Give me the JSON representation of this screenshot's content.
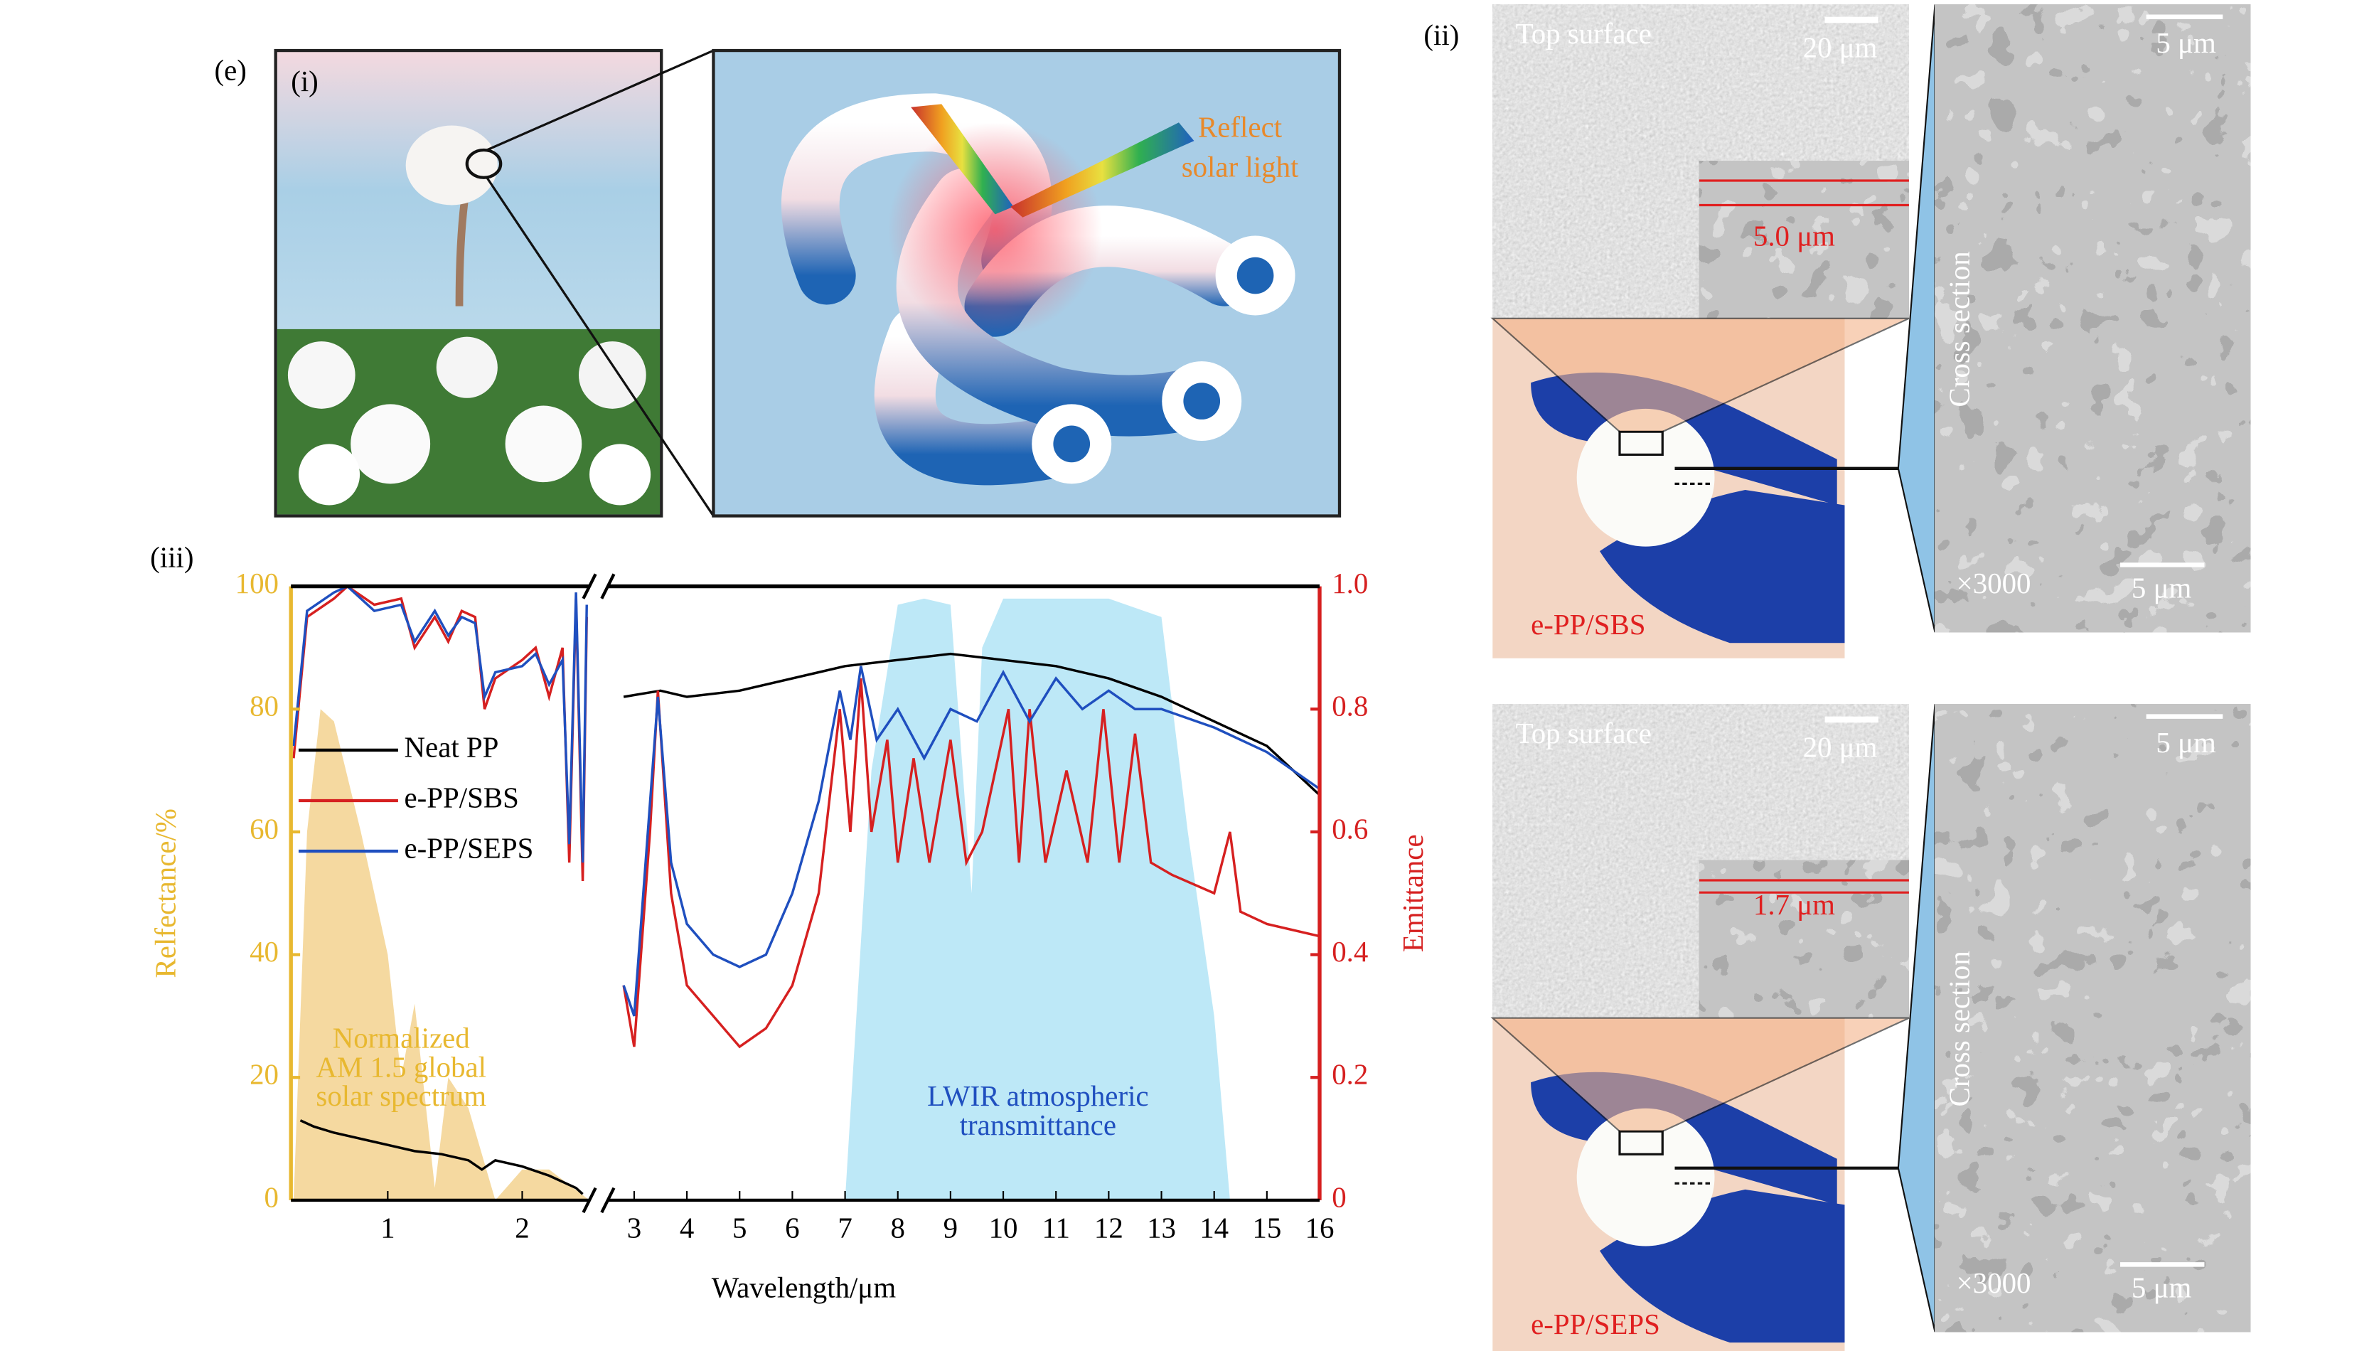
{
  "labels": {
    "e": "(e)",
    "i": "(i)",
    "ii": "(ii)",
    "iii": "(iii)"
  },
  "panel_i": {
    "annotation": [
      "Reflect",
      "solar light"
    ]
  },
  "panel_ii": [
    {
      "top_surface": "Top surface",
      "scale_top": "20 μm",
      "thickness": "5.0 μm",
      "sample": "e-PP/SBS",
      "cross_section": "Cross section",
      "magnification": "×3000",
      "scale_cs_top": "5 μm",
      "scale_cs_bottom": "5 μm"
    },
    {
      "top_surface": "Top surface",
      "scale_top": "20 μm",
      "thickness": "1.7 μm",
      "sample": "e-PP/SEPS",
      "cross_section": "Cross section",
      "magnification": "×3000",
      "scale_cs_top": "5 μm",
      "scale_cs_bottom": "5 μm"
    }
  ],
  "chart_data": [
    {
      "type": "line",
      "ylabel": "Relfectance/%",
      "xlim": [
        0.28,
        2.5
      ],
      "xticks": [
        1,
        2
      ],
      "ylim": [
        0,
        100
      ],
      "yticks": [
        0,
        20,
        40,
        60,
        80,
        100
      ],
      "axis_color": "#e8b830",
      "legend": "left",
      "area": {
        "label": [
          "Normalized",
          "AM 1.5 global",
          "solar spectrum"
        ],
        "color": "#f5d9a0",
        "x": [
          0.3,
          0.4,
          0.5,
          0.6,
          0.8,
          1.0,
          1.1,
          1.2,
          1.35,
          1.45,
          1.6,
          1.8,
          2.0,
          2.2,
          2.5
        ],
        "values": [
          0,
          60,
          80,
          78,
          60,
          40,
          20,
          32,
          2,
          20,
          15,
          0,
          5,
          5,
          0
        ]
      },
      "series": [
        {
          "name": "Neat PP",
          "color": "#000000",
          "x": [
            0.35,
            0.45,
            0.6,
            0.8,
            1.0,
            1.2,
            1.4,
            1.6,
            1.7,
            1.8,
            2.0,
            2.2,
            2.3,
            2.4,
            2.45
          ],
          "values": [
            13,
            12,
            11,
            10,
            9,
            8,
            7.5,
            6.5,
            5,
            6.5,
            5.5,
            4,
            3,
            2,
            1
          ]
        },
        {
          "name": "e-PP/SBS",
          "color": "#d62020",
          "x": [
            0.3,
            0.4,
            0.6,
            0.7,
            0.9,
            1.1,
            1.2,
            1.35,
            1.45,
            1.55,
            1.65,
            1.72,
            1.8,
            2.0,
            2.1,
            2.2,
            2.3,
            2.35,
            2.4,
            2.45,
            2.48
          ],
          "values": [
            72,
            95,
            98,
            100,
            97,
            98,
            90,
            95,
            91,
            96,
            95,
            80,
            85,
            88,
            90,
            82,
            90,
            55,
            98,
            52,
            95
          ]
        },
        {
          "name": "e-PP/SEPS",
          "color": "#1f4fbf",
          "x": [
            0.3,
            0.4,
            0.6,
            0.7,
            0.9,
            1.1,
            1.2,
            1.35,
            1.45,
            1.55,
            1.65,
            1.72,
            1.8,
            2.0,
            2.1,
            2.2,
            2.3,
            2.35,
            2.4,
            2.45,
            2.48
          ],
          "values": [
            74,
            96,
            99,
            100,
            96,
            97,
            91,
            96,
            92,
            95,
            94,
            82,
            86,
            87,
            89,
            84,
            88,
            58,
            99,
            55,
            97
          ]
        }
      ]
    },
    {
      "type": "line",
      "ylabel": "Emittance",
      "xlabel": "Wavelength/μm",
      "xlim": [
        2.5,
        16
      ],
      "xticks": [
        3,
        4,
        5,
        6,
        7,
        8,
        9,
        10,
        11,
        12,
        13,
        14,
        15,
        16
      ],
      "y2lim": [
        0,
        1
      ],
      "y2ticks": [
        0,
        0.2,
        0.4,
        0.6,
        0.8,
        {
          "value": 1,
          "label": "1.0"
        }
      ],
      "axis_color": "#d62020",
      "area": {
        "label": [
          "LWIR atmospheric",
          "transmittance"
        ],
        "color": "#bde8f7",
        "x": [
          7,
          7.5,
          8,
          8.5,
          9,
          9.4,
          9.6,
          10,
          10.5,
          12,
          13,
          13.5,
          14,
          14.3
        ],
        "values": [
          0,
          0.7,
          0.97,
          0.98,
          0.97,
          0.5,
          0.9,
          0.98,
          0.98,
          0.98,
          0.95,
          0.6,
          0.3,
          0
        ]
      },
      "series": [
        {
          "color": "#000000",
          "axis": "y2",
          "x": [
            2.8,
            3.5,
            4,
            5,
            6,
            7,
            8,
            9,
            10,
            11,
            12,
            13,
            14,
            15,
            16
          ],
          "values": [
            0.82,
            0.83,
            0.82,
            0.83,
            0.85,
            0.87,
            0.88,
            0.89,
            0.88,
            0.87,
            0.85,
            0.82,
            0.78,
            0.74,
            0.66
          ]
        },
        {
          "color": "#d62020",
          "axis": "y2",
          "x": [
            2.8,
            3.0,
            3.3,
            3.45,
            3.7,
            4,
            4.5,
            5,
            5.5,
            6,
            6.5,
            6.9,
            7.1,
            7.3,
            7.5,
            7.8,
            8.0,
            8.3,
            8.6,
            9.0,
            9.3,
            9.6,
            10.1,
            10.3,
            10.5,
            10.8,
            11.2,
            11.6,
            11.9,
            12.2,
            12.5,
            12.8,
            13.2,
            14,
            14.3,
            14.5,
            15,
            16
          ],
          "values": [
            0.35,
            0.25,
            0.6,
            0.83,
            0.5,
            0.35,
            0.3,
            0.25,
            0.28,
            0.35,
            0.5,
            0.8,
            0.6,
            0.85,
            0.6,
            0.75,
            0.55,
            0.72,
            0.55,
            0.75,
            0.55,
            0.6,
            0.8,
            0.55,
            0.8,
            0.55,
            0.7,
            0.55,
            0.8,
            0.55,
            0.76,
            0.55,
            0.53,
            0.5,
            0.6,
            0.47,
            0.45,
            0.43
          ]
        },
        {
          "color": "#1f4fbf",
          "axis": "y2",
          "x": [
            2.8,
            3.0,
            3.45,
            3.7,
            4,
            4.5,
            5,
            5.5,
            6,
            6.5,
            6.9,
            7.1,
            7.3,
            7.6,
            8,
            8.5,
            9,
            9.5,
            10,
            10.5,
            11,
            11.5,
            12,
            12.5,
            13,
            14,
            15,
            16
          ],
          "values": [
            0.35,
            0.3,
            0.82,
            0.55,
            0.45,
            0.4,
            0.38,
            0.4,
            0.5,
            0.65,
            0.83,
            0.75,
            0.87,
            0.75,
            0.8,
            0.72,
            0.8,
            0.78,
            0.86,
            0.78,
            0.85,
            0.8,
            0.83,
            0.8,
            0.8,
            0.77,
            0.73,
            0.67
          ]
        }
      ]
    }
  ]
}
